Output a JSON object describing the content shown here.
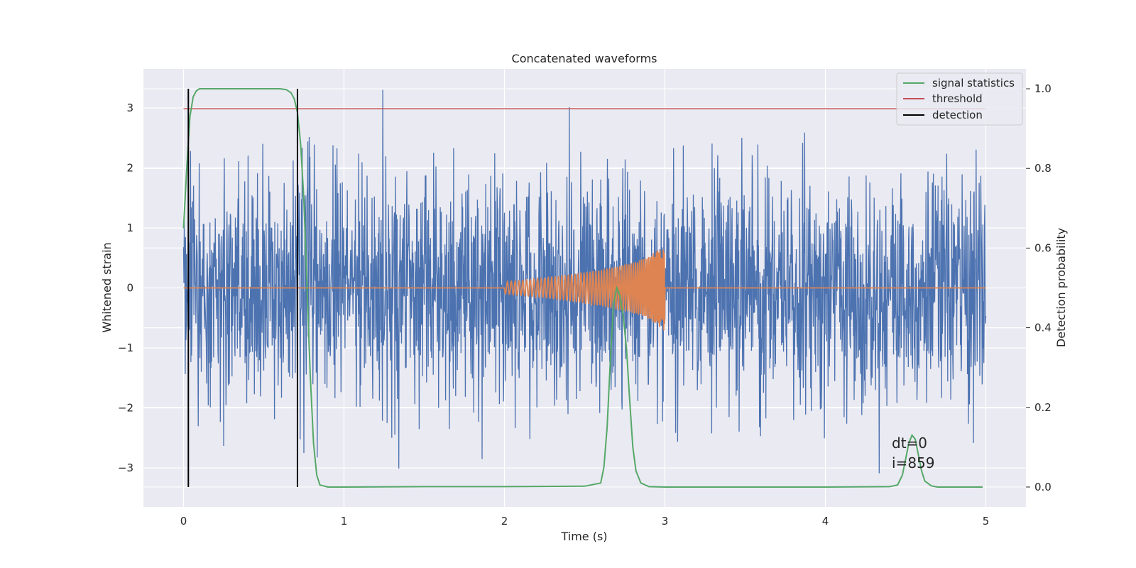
{
  "chart_data": {
    "type": "line",
    "title": "Concatenated waveforms",
    "xlabel": "Time (s)",
    "ylabel": "Whitened strain",
    "y2label": "Detection probability",
    "xlim": [
      -0.25,
      5.25
    ],
    "ylim": [
      -3.65,
      3.65
    ],
    "y2lim": [
      -0.05,
      1.05
    ],
    "xticks": [
      0,
      1,
      2,
      3,
      4,
      5
    ],
    "yticks": [
      -3,
      -2,
      -1,
      0,
      1,
      2,
      3
    ],
    "y2ticks": [
      0.0,
      0.2,
      0.4,
      0.6,
      0.8,
      1.0
    ],
    "ytick_labels": [
      "−3",
      "−2",
      "−1",
      "0",
      "1",
      "2",
      "3"
    ],
    "y2tick_labels": [
      "0.0",
      "0.2",
      "0.4",
      "0.6",
      "0.8",
      "1.0"
    ],
    "grid": true,
    "legend_position": "top-right",
    "colors": {
      "strain": "#4c72b0",
      "template": "#dd8452",
      "statistic": "#55a868",
      "threshold": "#c44e52",
      "detection": "#000000",
      "background": "#eaeaf2",
      "grid": "#ffffff"
    },
    "series": [
      {
        "name": "",
        "axis": "left",
        "kind": "noise",
        "x_range": [
          0,
          5
        ],
        "amplitude_std": 0.95,
        "max_abs": 3.3
      },
      {
        "name": "",
        "axis": "left",
        "kind": "chirp",
        "x": [
          0,
          2.0,
          2.2,
          2.4,
          2.6,
          2.8,
          2.9,
          3.0,
          3.0,
          5.0
        ],
        "envelope": [
          0,
          0.1,
          0.15,
          0.22,
          0.3,
          0.42,
          0.52,
          0.72,
          0,
          0
        ]
      },
      {
        "name": "signal statistics",
        "axis": "right",
        "x": [
          0.0,
          0.02,
          0.04,
          0.06,
          0.08,
          0.1,
          0.15,
          0.2,
          0.3,
          0.4,
          0.5,
          0.6,
          0.64,
          0.67,
          0.69,
          0.71,
          0.73,
          0.75,
          0.77,
          0.79,
          0.81,
          0.83,
          0.85,
          0.9,
          1.0,
          1.5,
          2.0,
          2.5,
          2.6,
          2.62,
          2.64,
          2.66,
          2.68,
          2.7,
          2.72,
          2.74,
          2.76,
          2.78,
          2.8,
          2.82,
          2.85,
          2.9,
          3.0,
          3.5,
          4.0,
          4.4,
          4.45,
          4.48,
          4.5,
          4.52,
          4.54,
          4.56,
          4.58,
          4.6,
          4.62,
          4.66,
          4.7,
          4.8,
          4.98
        ],
        "values": [
          0.65,
          0.8,
          0.93,
          0.98,
          0.995,
          1.0,
          1.0,
          1.0,
          1.0,
          1.0,
          1.0,
          1.0,
          0.998,
          0.99,
          0.975,
          0.94,
          0.86,
          0.72,
          0.5,
          0.28,
          0.11,
          0.03,
          0.005,
          0.0,
          0.0,
          0.001,
          0.001,
          0.002,
          0.01,
          0.05,
          0.15,
          0.32,
          0.46,
          0.5,
          0.48,
          0.43,
          0.35,
          0.22,
          0.1,
          0.04,
          0.01,
          0.001,
          0.0,
          0.0,
          0.0,
          0.001,
          0.005,
          0.03,
          0.07,
          0.11,
          0.13,
          0.12,
          0.08,
          0.04,
          0.015,
          0.003,
          0.0,
          0.0,
          0.0
        ]
      },
      {
        "name": "threshold",
        "axis": "right",
        "x": [
          0,
          5
        ],
        "values": [
          0.95,
          0.95
        ]
      },
      {
        "name": "detection",
        "axis": "right",
        "x_lines": [
          0.03,
          0.71
        ],
        "y_range": [
          0,
          1
        ]
      }
    ],
    "annotations": [
      "dt=0",
      "i=859"
    ]
  }
}
